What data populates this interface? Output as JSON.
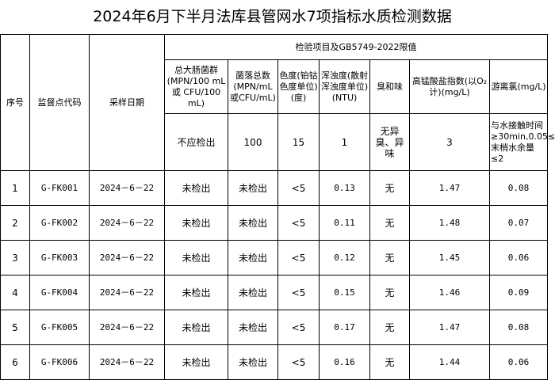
{
  "title": "2024年6月下半月法库县管网水7项指标水质检测数据",
  "headers": {
    "seq": "序号",
    "code": "监督点代码",
    "date": "采样日期",
    "group": "检验项目及GB5749-2022限值",
    "items": [
      "总大肠菌群(MPN/100 mL或 CFU/100 mL)",
      "菌落总数(MPN/mL或CFU/mL)",
      "色度(铂钴色度单位)(度)",
      "浑浊度(散射浑浊度单位)(NTU)",
      "臭和味",
      "高锰酸盐指数(以O₂计)(mg/L)",
      "游离氯(mg/L)"
    ]
  },
  "limits": [
    "不应检出",
    "100",
    "15",
    "1",
    "无异臭、异味",
    "3",
    "与水接触时间≥30min,0.05≤末梢水余量≤2"
  ],
  "rows": [
    [
      "1",
      "G-FK001",
      "2024－6－22",
      "未检出",
      "未检出",
      "<5",
      "0.13",
      "无",
      "1.47",
      "0.08"
    ],
    [
      "2",
      "G-FK002",
      "2024－6－22",
      "未检出",
      "未检出",
      "<5",
      "0.11",
      "无",
      "1.48",
      "0.07"
    ],
    [
      "3",
      "G-FK003",
      "2024－6－22",
      "未检出",
      "未检出",
      "<5",
      "0.12",
      "无",
      "1.45",
      "0.06"
    ],
    [
      "4",
      "G-FK004",
      "2024－6－22",
      "未检出",
      "未检出",
      "<5",
      "0.15",
      "无",
      "1.46",
      "0.09"
    ],
    [
      "5",
      "G-FK005",
      "2024－6－22",
      "未检出",
      "未检出",
      "<5",
      "0.17",
      "无",
      "1.47",
      "0.08"
    ],
    [
      "6",
      "G-FK006",
      "2024－6－22",
      "未检出",
      "未检出",
      "<5",
      "0.16",
      "无",
      "1.44",
      "0.06"
    ]
  ]
}
